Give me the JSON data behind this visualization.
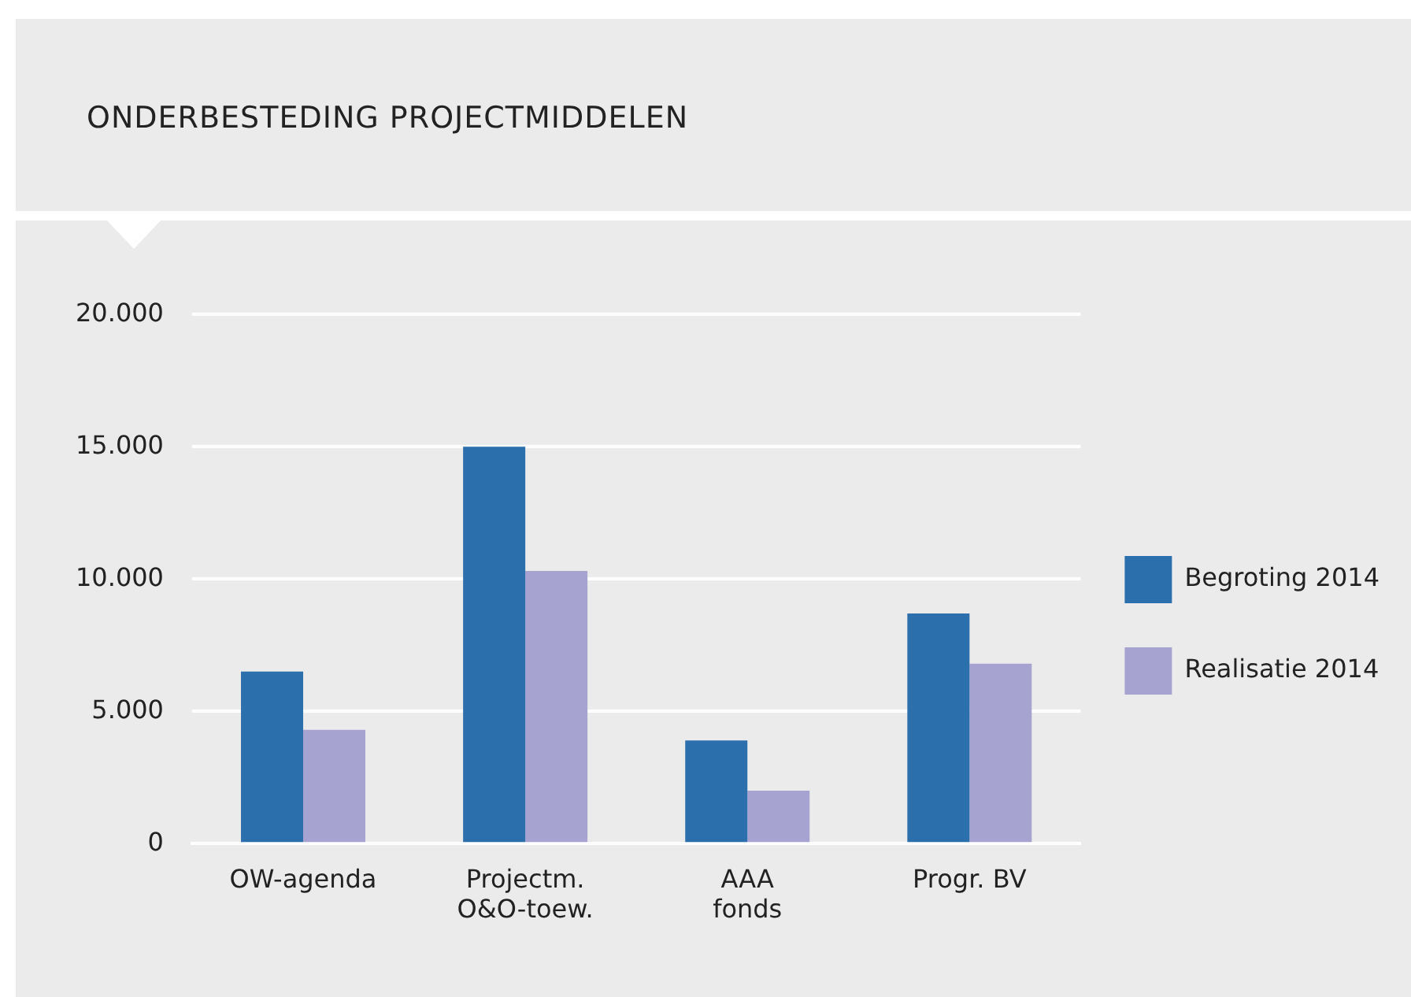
{
  "chart_data": {
    "type": "bar",
    "title": "ONDERBESTEDING PROJECTMIDDELEN",
    "categories": [
      "OW-agenda",
      "Projectm.\nO&O-toew.",
      "AAA\nfonds",
      "Progr. BV"
    ],
    "series": [
      {
        "name": "Begroting 2014",
        "color": "#2c6fad",
        "values": [
          6500,
          15000,
          3900,
          8700
        ]
      },
      {
        "name": "Realisatie 2014",
        "color": "#a7a3d1",
        "values": [
          4300,
          10300,
          2000,
          6800
        ]
      }
    ],
    "ylim": [
      0,
      20000
    ],
    "yticks": [
      0,
      {
        "value": 5000,
        "label": "5.000"
      },
      {
        "value": 10000,
        "label": "10.000"
      },
      {
        "value": 15000,
        "label": "15.000"
      },
      {
        "value": 20000,
        "label": "20.000"
      }
    ],
    "grid": "y",
    "legend": "right"
  }
}
